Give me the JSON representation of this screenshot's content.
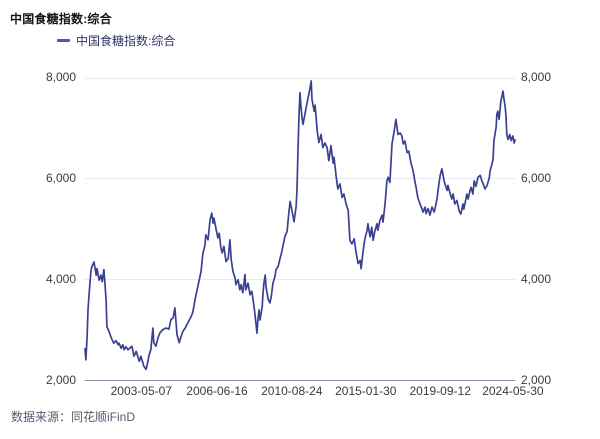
{
  "header": {
    "title": "中国食糖指数:综合"
  },
  "legend": {
    "items": [
      {
        "label": "中国食糖指数:综合",
        "color": "#4b57a7"
      }
    ]
  },
  "footer": {
    "source_text": "数据来源：同花顺iFinD"
  },
  "chart_data": {
    "type": "line",
    "title": "中国食糖指数:综合",
    "grid": true,
    "legend_position": "top-left",
    "dual_y_axis": true,
    "ylim": [
      2000,
      8000
    ],
    "y_ticks": [
      {
        "label": "8,000",
        "value": 8000
      },
      {
        "label": "6,000",
        "value": 6000
      },
      {
        "label": "4,000",
        "value": 4000
      },
      {
        "label": "2,000",
        "value": 2000
      }
    ],
    "x_ticks": [
      {
        "label": "2003-05-07",
        "pos": 0.131
      },
      {
        "label": "2006-06-16",
        "pos": 0.307
      },
      {
        "label": "2010-08-24",
        "pos": 0.481
      },
      {
        "label": "2015-01-30",
        "pos": 0.653
      },
      {
        "label": "2019-09-12",
        "pos": 0.826
      },
      {
        "label": "2024-05-30",
        "pos": 0.995
      }
    ],
    "series": [
      {
        "name": "中国食糖指数:综合",
        "color": "#3a4192",
        "points": [
          [
            0.0,
            2620
          ],
          [
            0.002,
            2400
          ],
          [
            0.005,
            2900
          ],
          [
            0.007,
            3390
          ],
          [
            0.009,
            3650
          ],
          [
            0.012,
            3980
          ],
          [
            0.014,
            4170
          ],
          [
            0.016,
            4250
          ],
          [
            0.021,
            4340
          ],
          [
            0.026,
            4080
          ],
          [
            0.028,
            4210
          ],
          [
            0.033,
            3980
          ],
          [
            0.037,
            4080
          ],
          [
            0.04,
            3950
          ],
          [
            0.044,
            4190
          ],
          [
            0.049,
            3590
          ],
          [
            0.051,
            3060
          ],
          [
            0.056,
            2960
          ],
          [
            0.06,
            2860
          ],
          [
            0.063,
            2800
          ],
          [
            0.067,
            2730
          ],
          [
            0.072,
            2780
          ],
          [
            0.077,
            2700
          ],
          [
            0.079,
            2730
          ],
          [
            0.084,
            2630
          ],
          [
            0.088,
            2700
          ],
          [
            0.091,
            2600
          ],
          [
            0.095,
            2660
          ],
          [
            0.1,
            2600
          ],
          [
            0.105,
            2640
          ],
          [
            0.109,
            2670
          ],
          [
            0.114,
            2470
          ],
          [
            0.119,
            2570
          ],
          [
            0.126,
            2370
          ],
          [
            0.13,
            2470
          ],
          [
            0.137,
            2270
          ],
          [
            0.142,
            2210
          ],
          [
            0.147,
            2400
          ],
          [
            0.149,
            2500
          ],
          [
            0.153,
            2600
          ],
          [
            0.158,
            3030
          ],
          [
            0.16,
            2740
          ],
          [
            0.165,
            2670
          ],
          [
            0.17,
            2840
          ],
          [
            0.174,
            2930
          ],
          [
            0.181,
            3000
          ],
          [
            0.188,
            3030
          ],
          [
            0.195,
            3010
          ],
          [
            0.2,
            3200
          ],
          [
            0.205,
            3230
          ],
          [
            0.209,
            3430
          ],
          [
            0.214,
            2900
          ],
          [
            0.219,
            2740
          ],
          [
            0.223,
            2850
          ],
          [
            0.228,
            2970
          ],
          [
            0.233,
            3030
          ],
          [
            0.237,
            3100
          ],
          [
            0.242,
            3180
          ],
          [
            0.247,
            3260
          ],
          [
            0.251,
            3350
          ],
          [
            0.256,
            3600
          ],
          [
            0.26,
            3760
          ],
          [
            0.265,
            3950
          ],
          [
            0.27,
            4160
          ],
          [
            0.274,
            4500
          ],
          [
            0.279,
            4680
          ],
          [
            0.281,
            4880
          ],
          [
            0.286,
            4780
          ],
          [
            0.291,
            5180
          ],
          [
            0.295,
            5310
          ],
          [
            0.298,
            5110
          ],
          [
            0.3,
            5210
          ],
          [
            0.305,
            4980
          ],
          [
            0.309,
            4820
          ],
          [
            0.312,
            4910
          ],
          [
            0.316,
            4620
          ],
          [
            0.319,
            4520
          ],
          [
            0.323,
            4650
          ],
          [
            0.328,
            4350
          ],
          [
            0.333,
            4410
          ],
          [
            0.337,
            4780
          ],
          [
            0.34,
            4390
          ],
          [
            0.344,
            4160
          ],
          [
            0.349,
            4020
          ],
          [
            0.351,
            3890
          ],
          [
            0.356,
            3990
          ],
          [
            0.36,
            3790
          ],
          [
            0.363,
            3890
          ],
          [
            0.367,
            3730
          ],
          [
            0.372,
            4090
          ],
          [
            0.374,
            3790
          ],
          [
            0.379,
            3920
          ],
          [
            0.384,
            3690
          ],
          [
            0.388,
            3760
          ],
          [
            0.391,
            3590
          ],
          [
            0.393,
            3460
          ],
          [
            0.395,
            3330
          ],
          [
            0.4,
            2930
          ],
          [
            0.402,
            3200
          ],
          [
            0.405,
            3390
          ],
          [
            0.407,
            3190
          ],
          [
            0.412,
            3450
          ],
          [
            0.414,
            3720
          ],
          [
            0.416,
            3920
          ],
          [
            0.419,
            4080
          ],
          [
            0.421,
            3850
          ],
          [
            0.426,
            3600
          ],
          [
            0.43,
            3530
          ],
          [
            0.433,
            3650
          ],
          [
            0.435,
            3790
          ],
          [
            0.437,
            3920
          ],
          [
            0.442,
            4060
          ],
          [
            0.444,
            4190
          ],
          [
            0.449,
            4250
          ],
          [
            0.453,
            4390
          ],
          [
            0.458,
            4550
          ],
          [
            0.46,
            4650
          ],
          [
            0.465,
            4850
          ],
          [
            0.47,
            4950
          ],
          [
            0.474,
            5310
          ],
          [
            0.477,
            5540
          ],
          [
            0.481,
            5380
          ],
          [
            0.486,
            5140
          ],
          [
            0.491,
            5440
          ],
          [
            0.493,
            5770
          ],
          [
            0.495,
            6500
          ],
          [
            0.498,
            7300
          ],
          [
            0.5,
            7700
          ],
          [
            0.502,
            7440
          ],
          [
            0.505,
            7180
          ],
          [
            0.507,
            7070
          ],
          [
            0.512,
            7300
          ],
          [
            0.516,
            7480
          ],
          [
            0.521,
            7680
          ],
          [
            0.526,
            7930
          ],
          [
            0.528,
            7560
          ],
          [
            0.533,
            7330
          ],
          [
            0.535,
            7450
          ],
          [
            0.54,
            6940
          ],
          [
            0.544,
            6710
          ],
          [
            0.549,
            6870
          ],
          [
            0.553,
            6610
          ],
          [
            0.558,
            6700
          ],
          [
            0.563,
            6610
          ],
          [
            0.567,
            6350
          ],
          [
            0.572,
            6650
          ],
          [
            0.577,
            6300
          ],
          [
            0.579,
            6420
          ],
          [
            0.584,
            6050
          ],
          [
            0.588,
            5790
          ],
          [
            0.593,
            5890
          ],
          [
            0.598,
            5620
          ],
          [
            0.602,
            5690
          ],
          [
            0.607,
            5500
          ],
          [
            0.612,
            5360
          ],
          [
            0.616,
            4770
          ],
          [
            0.621,
            4700
          ],
          [
            0.626,
            4800
          ],
          [
            0.63,
            4550
          ],
          [
            0.635,
            4310
          ],
          [
            0.64,
            4370
          ],
          [
            0.642,
            4210
          ],
          [
            0.647,
            4570
          ],
          [
            0.651,
            4800
          ],
          [
            0.656,
            4970
          ],
          [
            0.658,
            5100
          ],
          [
            0.663,
            4840
          ],
          [
            0.667,
            5030
          ],
          [
            0.67,
            4770
          ],
          [
            0.674,
            4950
          ],
          [
            0.679,
            5100
          ],
          [
            0.681,
            4970
          ],
          [
            0.686,
            5170
          ],
          [
            0.691,
            5270
          ],
          [
            0.693,
            5130
          ],
          [
            0.698,
            5500
          ],
          [
            0.702,
            5950
          ],
          [
            0.705,
            6020
          ],
          [
            0.709,
            5920
          ],
          [
            0.714,
            6680
          ],
          [
            0.719,
            6940
          ],
          [
            0.723,
            7170
          ],
          [
            0.728,
            6870
          ],
          [
            0.733,
            6900
          ],
          [
            0.737,
            6840
          ],
          [
            0.74,
            6680
          ],
          [
            0.744,
            6740
          ],
          [
            0.749,
            6510
          ],
          [
            0.753,
            6540
          ],
          [
            0.758,
            6310
          ],
          [
            0.763,
            6150
          ],
          [
            0.767,
            5950
          ],
          [
            0.77,
            5820
          ],
          [
            0.774,
            5620
          ],
          [
            0.779,
            5490
          ],
          [
            0.784,
            5390
          ],
          [
            0.786,
            5330
          ],
          [
            0.791,
            5430
          ],
          [
            0.793,
            5300
          ],
          [
            0.798,
            5400
          ],
          [
            0.802,
            5270
          ],
          [
            0.807,
            5430
          ],
          [
            0.812,
            5330
          ],
          [
            0.816,
            5480
          ],
          [
            0.819,
            5620
          ],
          [
            0.823,
            5890
          ],
          [
            0.826,
            6060
          ],
          [
            0.83,
            6190
          ],
          [
            0.835,
            5950
          ],
          [
            0.837,
            5890
          ],
          [
            0.842,
            5760
          ],
          [
            0.844,
            5860
          ],
          [
            0.849,
            5700
          ],
          [
            0.853,
            5590
          ],
          [
            0.856,
            5690
          ],
          [
            0.86,
            5490
          ],
          [
            0.865,
            5560
          ],
          [
            0.87,
            5360
          ],
          [
            0.874,
            5290
          ],
          [
            0.879,
            5490
          ],
          [
            0.881,
            5390
          ],
          [
            0.886,
            5600
          ],
          [
            0.888,
            5690
          ],
          [
            0.891,
            5590
          ],
          [
            0.895,
            5750
          ],
          [
            0.898,
            5820
          ],
          [
            0.902,
            5690
          ],
          [
            0.905,
            5950
          ],
          [
            0.909,
            5840
          ],
          [
            0.914,
            6020
          ],
          [
            0.919,
            6060
          ],
          [
            0.923,
            5950
          ],
          [
            0.926,
            5890
          ],
          [
            0.93,
            5790
          ],
          [
            0.935,
            5860
          ],
          [
            0.94,
            6000
          ],
          [
            0.942,
            6150
          ],
          [
            0.947,
            6300
          ],
          [
            0.949,
            6390
          ],
          [
            0.951,
            6740
          ],
          [
            0.956,
            7010
          ],
          [
            0.958,
            7270
          ],
          [
            0.96,
            7330
          ],
          [
            0.963,
            7170
          ],
          [
            0.967,
            7520
          ],
          [
            0.972,
            7730
          ],
          [
            0.974,
            7600
          ],
          [
            0.977,
            7430
          ],
          [
            0.979,
            7230
          ],
          [
            0.981,
            6870
          ],
          [
            0.984,
            6770
          ],
          [
            0.988,
            6870
          ],
          [
            0.991,
            6750
          ],
          [
            0.995,
            6840
          ],
          [
            0.998,
            6700
          ],
          [
            1.0,
            6760
          ]
        ]
      }
    ]
  }
}
